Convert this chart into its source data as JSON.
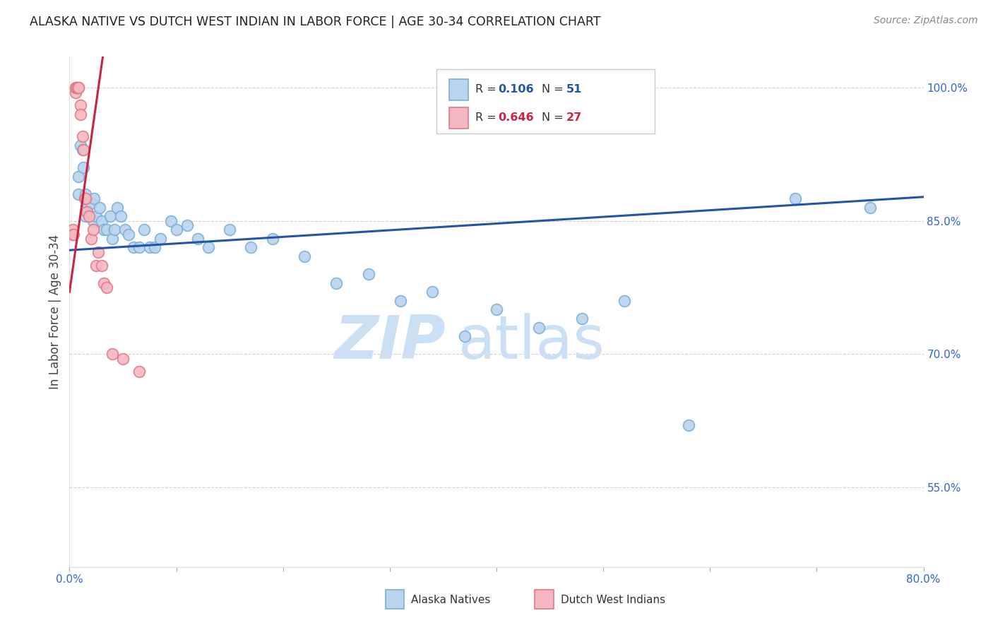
{
  "title": "ALASKA NATIVE VS DUTCH WEST INDIAN IN LABOR FORCE | AGE 30-34 CORRELATION CHART",
  "source": "Source: ZipAtlas.com",
  "ylabel": "In Labor Force | Age 30-34",
  "xlim": [
    0.0,
    0.8
  ],
  "ylim": [
    0.46,
    1.035
  ],
  "alaska_color": "#b8d4ee",
  "alaska_edge": "#7aaed6",
  "dutch_color": "#f5b8c0",
  "dutch_edge": "#e07888",
  "trend_alaska_color": "#2255aa",
  "trend_dutch_color": "#cc2244",
  "alaska_R": 0.106,
  "alaska_N": 51,
  "dutch_R": 0.646,
  "dutch_N": 27,
  "alaska_points_x": [
    0.003,
    0.008,
    0.008,
    0.01,
    0.012,
    0.013,
    0.015,
    0.015,
    0.017,
    0.02,
    0.022,
    0.023,
    0.025,
    0.028,
    0.03,
    0.032,
    0.035,
    0.038,
    0.04,
    0.042,
    0.045,
    0.048,
    0.052,
    0.055,
    0.06,
    0.065,
    0.07,
    0.075,
    0.08,
    0.085,
    0.095,
    0.1,
    0.11,
    0.12,
    0.13,
    0.15,
    0.17,
    0.19,
    0.22,
    0.25,
    0.28,
    0.31,
    0.34,
    0.37,
    0.4,
    0.44,
    0.48,
    0.52,
    0.58,
    0.68,
    0.75
  ],
  "alaska_points_y": [
    0.835,
    0.9,
    0.88,
    0.935,
    0.93,
    0.91,
    0.88,
    0.855,
    0.87,
    0.87,
    0.85,
    0.875,
    0.855,
    0.865,
    0.85,
    0.84,
    0.84,
    0.855,
    0.83,
    0.84,
    0.865,
    0.855,
    0.84,
    0.835,
    0.82,
    0.82,
    0.84,
    0.82,
    0.82,
    0.83,
    0.85,
    0.84,
    0.845,
    0.83,
    0.82,
    0.84,
    0.82,
    0.83,
    0.81,
    0.78,
    0.79,
    0.76,
    0.77,
    0.72,
    0.75,
    0.73,
    0.74,
    0.76,
    0.62,
    0.875,
    0.865
  ],
  "dutch_points_x": [
    0.003,
    0.003,
    0.004,
    0.006,
    0.006,
    0.007,
    0.007,
    0.008,
    0.008,
    0.01,
    0.01,
    0.012,
    0.013,
    0.014,
    0.015,
    0.016,
    0.018,
    0.02,
    0.022,
    0.025,
    0.027,
    0.03,
    0.032,
    0.035,
    0.04,
    0.05,
    0.065
  ],
  "dutch_points_y": [
    0.835,
    0.84,
    0.835,
    0.995,
    1.0,
    1.0,
    1.0,
    1.0,
    1.0,
    0.98,
    0.97,
    0.945,
    0.93,
    0.875,
    0.875,
    0.86,
    0.855,
    0.83,
    0.84,
    0.8,
    0.815,
    0.8,
    0.78,
    0.775,
    0.7,
    0.695,
    0.68
  ],
  "watermark_zip": "ZIP",
  "watermark_atlas": "atlas",
  "watermark_color": "#cce0f5",
  "background_color": "#ffffff",
  "grid_color": "#cccccc",
  "title_color": "#222222",
  "right_tick_color": "#3366cc",
  "bottom_tick_label_color": "#3366cc",
  "ytick_positions": [
    1.0,
    0.85,
    0.7,
    0.55
  ],
  "ytick_labels": [
    "100.0%",
    "85.0%",
    "70.0%",
    "55.0%"
  ],
  "xtick_positions": [
    0.0,
    0.1,
    0.2,
    0.3,
    0.4,
    0.5,
    0.6,
    0.7,
    0.8
  ],
  "xtick_labels": [
    "0.0%",
    "",
    "",
    "",
    "",
    "",
    "",
    "",
    "80.0%"
  ],
  "legend_bottom_labels": [
    "Alaska Natives",
    "Dutch West Indians"
  ],
  "trend_alaska_intercept": 0.817,
  "trend_alaska_slope": 0.075,
  "trend_dutch_intercept": 0.77,
  "trend_dutch_slope": 8.5
}
